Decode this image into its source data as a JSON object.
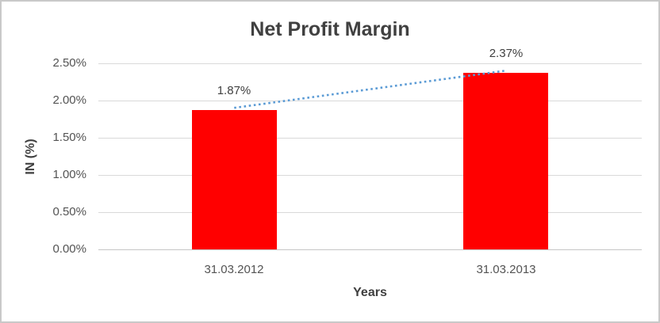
{
  "chart_data": {
    "type": "bar",
    "title": "Net Profit Margin",
    "categories": [
      "31.03.2012",
      "31.03.2013"
    ],
    "values": [
      1.87,
      2.37
    ],
    "value_labels": [
      "1.87%",
      "2.37%"
    ],
    "xlabel": "Years",
    "ylabel": "IN (%)",
    "ylim": [
      0,
      2.5
    ],
    "ytick_step": 0.5,
    "ytick_labels": [
      "0.00%",
      "0.50%",
      "1.00%",
      "1.50%",
      "2.00%",
      "2.50%"
    ],
    "grid": true,
    "legend": "none",
    "trendline": {
      "type": "linear",
      "style": "dotted",
      "color": "#5b9bd5",
      "from_value": 1.87,
      "to_value": 2.37
    },
    "colors": {
      "bar": "#ff0000",
      "title_text": "#404040",
      "axis_text": "#535353",
      "gridline": "#d9d9d9",
      "frame_border": "#c9c9c9",
      "background": "#ffffff"
    }
  }
}
